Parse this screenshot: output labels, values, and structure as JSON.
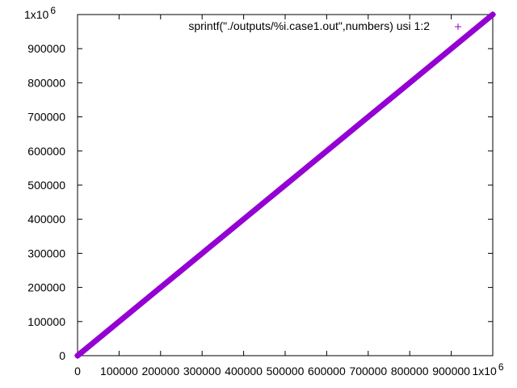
{
  "colors": {
    "series": "#9400d3",
    "axis": "#000000",
    "background": "#ffffff"
  },
  "chart_data": {
    "type": "scatter",
    "title": "",
    "xlabel": "",
    "ylabel": "",
    "xlim": [
      0,
      1000000
    ],
    "ylim": [
      0,
      1000000
    ],
    "grid": false,
    "legend_position": "top-right",
    "x_ticks": [
      {
        "value": 0,
        "label": "0"
      },
      {
        "value": 100000,
        "label": "100000"
      },
      {
        "value": 200000,
        "label": "200000"
      },
      {
        "value": 300000,
        "label": "300000"
      },
      {
        "value": 400000,
        "label": "400000"
      },
      {
        "value": 500000,
        "label": "500000"
      },
      {
        "value": 600000,
        "label": "600000"
      },
      {
        "value": 700000,
        "label": "700000"
      },
      {
        "value": 800000,
        "label": "800000"
      },
      {
        "value": 900000,
        "label": "900000"
      },
      {
        "value": 1000000,
        "label": "1x10",
        "exponent": "6"
      }
    ],
    "y_ticks": [
      {
        "value": 0,
        "label": "0"
      },
      {
        "value": 100000,
        "label": "100000"
      },
      {
        "value": 200000,
        "label": "200000"
      },
      {
        "value": 300000,
        "label": "300000"
      },
      {
        "value": 400000,
        "label": "400000"
      },
      {
        "value": 500000,
        "label": "500000"
      },
      {
        "value": 600000,
        "label": "600000"
      },
      {
        "value": 700000,
        "label": "700000"
      },
      {
        "value": 800000,
        "label": "800000"
      },
      {
        "value": 900000,
        "label": "900000"
      },
      {
        "value": 1000000,
        "label": "1x10",
        "exponent": "6"
      }
    ],
    "series": [
      {
        "name": "sprintf(\"./outputs/%i.case1.out\",numbers) usi 1:2",
        "marker": "+",
        "color": "#9400d3",
        "points": [
          [
            0,
            0
          ],
          [
            50000,
            50000
          ],
          [
            100000,
            100000
          ],
          [
            150000,
            150000
          ],
          [
            200000,
            200000
          ],
          [
            250000,
            250000
          ],
          [
            300000,
            300000
          ],
          [
            350000,
            350000
          ],
          [
            400000,
            400000
          ],
          [
            450000,
            450000
          ],
          [
            500000,
            500000
          ],
          [
            550000,
            550000
          ],
          [
            600000,
            600000
          ],
          [
            650000,
            650000
          ],
          [
            700000,
            700000
          ],
          [
            750000,
            750000
          ],
          [
            800000,
            800000
          ],
          [
            850000,
            850000
          ],
          [
            900000,
            900000
          ],
          [
            950000,
            950000
          ],
          [
            1000000,
            1000000
          ]
        ]
      }
    ]
  }
}
